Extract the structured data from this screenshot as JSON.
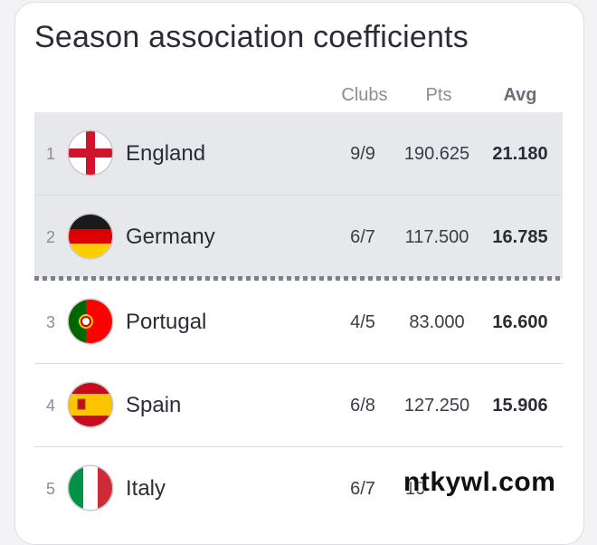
{
  "title": "Season association coefficients",
  "headers": {
    "clubs": "Clubs",
    "pts": "Pts",
    "avg": "Avg"
  },
  "rows": [
    {
      "rank": "1",
      "country": "England",
      "flag": "england-flag-icon",
      "clubs": "9/9",
      "pts": "190.625",
      "avg": "21.180"
    },
    {
      "rank": "2",
      "country": "Germany",
      "flag": "germany-flag-icon",
      "clubs": "6/7",
      "pts": "117.500",
      "avg": "16.785"
    },
    {
      "rank": "3",
      "country": "Portugal",
      "flag": "portugal-flag-icon",
      "clubs": "4/5",
      "pts": "83.000",
      "avg": "16.600"
    },
    {
      "rank": "4",
      "country": "Spain",
      "flag": "spain-flag-icon",
      "clubs": "6/8",
      "pts": "127.250",
      "avg": "15.906"
    },
    {
      "rank": "5",
      "country": "Italy",
      "flag": "italy-flag-icon",
      "clubs": "6/7",
      "pts": "10",
      "avg": ""
    }
  ],
  "watermark": "ntkywl.com",
  "colors": {
    "highlight_row": "#e6e8ec",
    "text": "#2a2d36",
    "muted": "#8a8d99"
  }
}
